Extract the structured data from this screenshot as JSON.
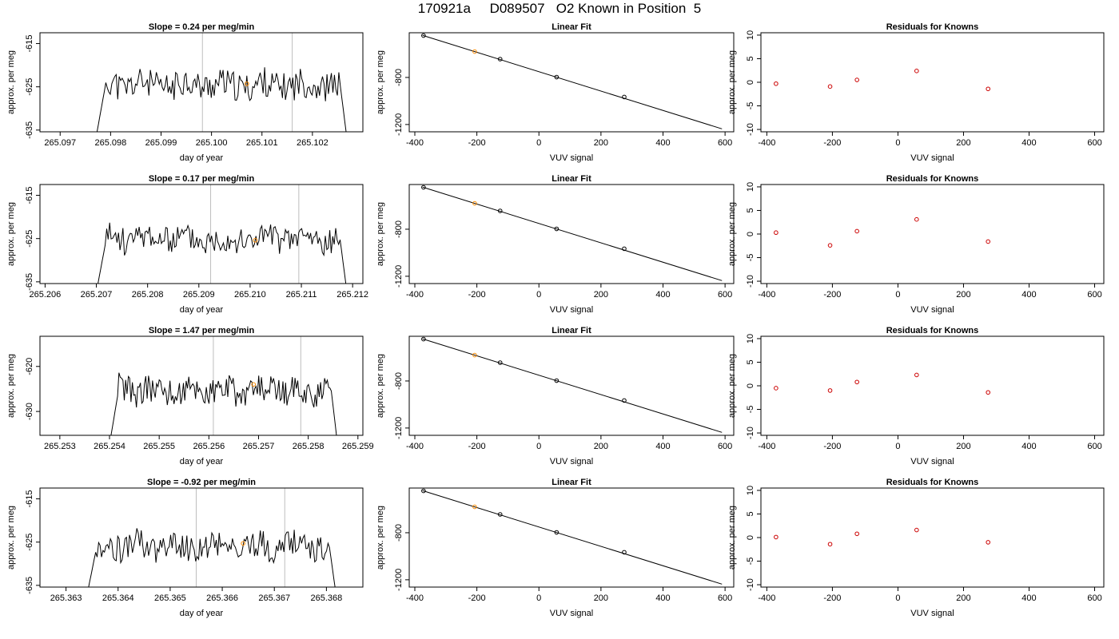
{
  "page_title": "170921a     D089507   O2 Known in Position  5",
  "colors": {
    "trace": "#000000",
    "marker": "#FF8C00",
    "residual": "#CC0000",
    "gridline": "#BEBEBE"
  },
  "chart_data": [
    {
      "type": "line",
      "title": "Slope =  0.24  per meg/min",
      "xlabel": "day of year",
      "ylabel": "approx. per meg",
      "xlim": [
        265.0966,
        265.103
      ],
      "ylim": [
        -635.4,
        -612.5
      ],
      "xticks": [
        {
          "v": 265.097,
          "label": "265.097"
        },
        {
          "v": 265.098,
          "label": "265.098"
        },
        {
          "v": 265.099,
          "label": "265.099"
        },
        {
          "v": 265.1,
          "label": "265.100"
        },
        {
          "v": 265.101,
          "label": "265.101"
        },
        {
          "v": 265.102,
          "label": "265.102"
        }
      ],
      "yticks": [
        {
          "v": -615,
          "label": "-615"
        },
        {
          "v": -625,
          "label": "-625"
        },
        {
          "v": -635,
          "label": "-635"
        }
      ],
      "vlines": [
        265.09982,
        265.1016
      ],
      "x_range": [
        265.0977,
        265.1027
      ],
      "y_mean": -624.5,
      "amplitude": 3.4,
      "seed": 11,
      "highlight": {
        "x": 265.1007,
        "y": -624.3
      }
    },
    {
      "type": "scatter",
      "title": "Linear Fit",
      "xlabel": "VUV signal",
      "ylabel": "approx. per meg",
      "xlim": [
        -418,
        628
      ],
      "ylim": [
        -1262,
        -420
      ],
      "xticks": [
        {
          "v": -400,
          "label": "-400"
        },
        {
          "v": -200,
          "label": "-200"
        },
        {
          "v": 0,
          "label": "0"
        },
        {
          "v": 200,
          "label": "200"
        },
        {
          "v": 400,
          "label": "400"
        },
        {
          "v": 600,
          "label": "600"
        }
      ],
      "yticks": [
        {
          "v": -800,
          "label": "-800"
        },
        {
          "v": -1200,
          "label": "-1200"
        }
      ],
      "x": [
        -372,
        -207,
        -125,
        57,
        275
      ],
      "y": [
        -444,
        -580,
        -644,
        -797,
        -966
      ],
      "highlight_index": 1,
      "fit_line": {
        "x": [
          -375,
          590
        ],
        "y": [
          -442,
          -1237
        ]
      }
    },
    {
      "type": "scatter",
      "title": "Residuals for Knowns",
      "xlabel": "VUV signal",
      "ylabel": "approx. per meg",
      "xlim": [
        -418,
        628
      ],
      "ylim": [
        -10.5,
        10.5
      ],
      "xticks": [
        {
          "v": -400,
          "label": "-400"
        },
        {
          "v": -200,
          "label": "-200"
        },
        {
          "v": 0,
          "label": "0"
        },
        {
          "v": 200,
          "label": "200"
        },
        {
          "v": 400,
          "label": "400"
        },
        {
          "v": 600,
          "label": "600"
        }
      ],
      "yticks": [
        {
          "v": 10,
          "label": "10"
        },
        {
          "v": 5,
          "label": "5"
        },
        {
          "v": 0,
          "label": "0"
        },
        {
          "v": -5,
          "label": "-5"
        },
        {
          "v": -10,
          "label": "-10"
        }
      ],
      "x": [
        -372,
        -207,
        -125,
        57,
        275
      ],
      "y": [
        -0.3,
        -0.9,
        0.5,
        2.4,
        -1.4
      ]
    },
    {
      "type": "line",
      "title": "Slope =  0.17  per meg/min",
      "xlabel": "day of year",
      "ylabel": "approx. per meg",
      "xlim": [
        265.2059,
        265.2122
      ],
      "ylim": [
        -635.4,
        -612.5
      ],
      "xticks": [
        {
          "v": 265.206,
          "label": "265.206"
        },
        {
          "v": 265.207,
          "label": "265.207"
        },
        {
          "v": 265.208,
          "label": "265.208"
        },
        {
          "v": 265.209,
          "label": "265.209"
        },
        {
          "v": 265.21,
          "label": "265.210"
        },
        {
          "v": 265.211,
          "label": "265.211"
        },
        {
          "v": 265.212,
          "label": "265.212"
        }
      ],
      "yticks": [
        {
          "v": -615,
          "label": "-615"
        },
        {
          "v": -625,
          "label": "-625"
        },
        {
          "v": -635,
          "label": "-635"
        }
      ],
      "vlines": [
        265.20923,
        265.21095
      ],
      "x_range": [
        265.207,
        265.2119
      ],
      "y_mean": -625.0,
      "amplitude": 3.2,
      "seed": 23,
      "highlight": {
        "x": 265.2101,
        "y": -625.4
      }
    },
    {
      "type": "scatter",
      "title": "Linear Fit",
      "xlabel": "VUV signal",
      "ylabel": "approx. per meg",
      "xlim": [
        -418,
        628
      ],
      "ylim": [
        -1262,
        -420
      ],
      "xticks": [
        {
          "v": -400,
          "label": "-400"
        },
        {
          "v": -200,
          "label": "-200"
        },
        {
          "v": 0,
          "label": "0"
        },
        {
          "v": 200,
          "label": "200"
        },
        {
          "v": 400,
          "label": "400"
        },
        {
          "v": 600,
          "label": "600"
        }
      ],
      "yticks": [
        {
          "v": -800,
          "label": "-800"
        },
        {
          "v": -1200,
          "label": "-1200"
        }
      ],
      "x": [
        -372,
        -207,
        -125,
        57,
        275
      ],
      "y": [
        -444,
        -580,
        -644,
        -797,
        -966
      ],
      "highlight_index": 1,
      "fit_line": {
        "x": [
          -375,
          590
        ],
        "y": [
          -442,
          -1237
        ]
      }
    },
    {
      "type": "scatter",
      "title": "Residuals for Knowns",
      "xlabel": "VUV signal",
      "ylabel": "approx. per meg",
      "xlim": [
        -418,
        628
      ],
      "ylim": [
        -10.5,
        10.5
      ],
      "xticks": [
        {
          "v": -400,
          "label": "-400"
        },
        {
          "v": -200,
          "label": "-200"
        },
        {
          "v": 0,
          "label": "0"
        },
        {
          "v": 200,
          "label": "200"
        },
        {
          "v": 400,
          "label": "400"
        },
        {
          "v": 600,
          "label": "600"
        }
      ],
      "yticks": [
        {
          "v": 10,
          "label": "10"
        },
        {
          "v": 5,
          "label": "5"
        },
        {
          "v": 0,
          "label": "0"
        },
        {
          "v": -5,
          "label": "-5"
        },
        {
          "v": -10,
          "label": "-10"
        }
      ],
      "x": [
        -372,
        -207,
        -125,
        57,
        275
      ],
      "y": [
        0.3,
        -2.4,
        0.6,
        3.1,
        -1.6
      ]
    },
    {
      "type": "line",
      "title": "Slope =  1.47  per meg/min",
      "xlabel": "day of year",
      "ylabel": "approx. per meg",
      "xlim": [
        265.2526,
        265.2591
      ],
      "ylim": [
        -635.3,
        -613.3
      ],
      "xticks": [
        {
          "v": 265.253,
          "label": "265.253"
        },
        {
          "v": 265.254,
          "label": "265.254"
        },
        {
          "v": 265.255,
          "label": "265.255"
        },
        {
          "v": 265.256,
          "label": "265.256"
        },
        {
          "v": 265.257,
          "label": "265.257"
        },
        {
          "v": 265.258,
          "label": "265.258"
        },
        {
          "v": 265.259,
          "label": "265.259"
        }
      ],
      "yticks": [
        {
          "v": -620,
          "label": "-620"
        },
        {
          "v": -630,
          "label": "-630"
        }
      ],
      "vlines": [
        265.25609,
        265.25785
      ],
      "x_range": [
        265.254,
        265.2586
      ],
      "y_mean": -625.2,
      "amplitude": 3.2,
      "seed": 37,
      "highlight": {
        "x": 265.2569,
        "y": -624.0
      }
    },
    {
      "type": "scatter",
      "title": "Linear Fit",
      "xlabel": "VUV signal",
      "ylabel": "approx. per meg",
      "xlim": [
        -418,
        628
      ],
      "ylim": [
        -1262,
        -420
      ],
      "xticks": [
        {
          "v": -400,
          "label": "-400"
        },
        {
          "v": -200,
          "label": "-200"
        },
        {
          "v": 0,
          "label": "0"
        },
        {
          "v": 200,
          "label": "200"
        },
        {
          "v": 400,
          "label": "400"
        },
        {
          "v": 600,
          "label": "600"
        }
      ],
      "yticks": [
        {
          "v": -800,
          "label": "-800"
        },
        {
          "v": -1200,
          "label": "-1200"
        }
      ],
      "x": [
        -372,
        -207,
        -125,
        57,
        275
      ],
      "y": [
        -444,
        -580,
        -644,
        -797,
        -966
      ],
      "highlight_index": 1,
      "fit_line": {
        "x": [
          -375,
          590
        ],
        "y": [
          -442,
          -1237
        ]
      }
    },
    {
      "type": "scatter",
      "title": "Residuals for Knowns",
      "xlabel": "VUV signal",
      "ylabel": "approx. per meg",
      "xlim": [
        -418,
        628
      ],
      "ylim": [
        -10.5,
        10.5
      ],
      "xticks": [
        {
          "v": -400,
          "label": "-400"
        },
        {
          "v": -200,
          "label": "-200"
        },
        {
          "v": 0,
          "label": "0"
        },
        {
          "v": 200,
          "label": "200"
        },
        {
          "v": 400,
          "label": "400"
        },
        {
          "v": 600,
          "label": "600"
        }
      ],
      "yticks": [
        {
          "v": 10,
          "label": "10"
        },
        {
          "v": 5,
          "label": "5"
        },
        {
          "v": 0,
          "label": "0"
        },
        {
          "v": -5,
          "label": "-5"
        },
        {
          "v": -10,
          "label": "-10"
        }
      ],
      "x": [
        -372,
        -207,
        -125,
        57,
        275
      ],
      "y": [
        -0.5,
        -1.0,
        0.8,
        2.3,
        -1.4
      ]
    },
    {
      "type": "line",
      "title": "Slope =  -0.92  per meg/min",
      "xlabel": "day of year",
      "ylabel": "approx. per meg",
      "xlim": [
        265.3625,
        265.3687
      ],
      "ylim": [
        -635.4,
        -612.5
      ],
      "xticks": [
        {
          "v": 265.363,
          "label": "265.363"
        },
        {
          "v": 265.364,
          "label": "265.364"
        },
        {
          "v": 265.365,
          "label": "265.365"
        },
        {
          "v": 265.366,
          "label": "265.366"
        },
        {
          "v": 265.367,
          "label": "265.367"
        },
        {
          "v": 265.368,
          "label": "265.368"
        }
      ],
      "yticks": [
        {
          "v": -615,
          "label": "-615"
        },
        {
          "v": -625,
          "label": "-625"
        },
        {
          "v": -635,
          "label": "-635"
        }
      ],
      "vlines": [
        265.3655,
        265.3672
      ],
      "x_range": [
        265.3634,
        265.3682
      ],
      "y_mean": -626.0,
      "amplitude": 3.2,
      "seed": 53,
      "highlight": {
        "x": 265.3664,
        "y": -625.3
      }
    },
    {
      "type": "scatter",
      "title": "Linear Fit",
      "xlabel": "VUV signal",
      "ylabel": "approx. per meg",
      "xlim": [
        -418,
        628
      ],
      "ylim": [
        -1262,
        -420
      ],
      "xticks": [
        {
          "v": -400,
          "label": "-400"
        },
        {
          "v": -200,
          "label": "-200"
        },
        {
          "v": 0,
          "label": "0"
        },
        {
          "v": 200,
          "label": "200"
        },
        {
          "v": 400,
          "label": "400"
        },
        {
          "v": 600,
          "label": "600"
        }
      ],
      "yticks": [
        {
          "v": -800,
          "label": "-800"
        },
        {
          "v": -1200,
          "label": "-1200"
        }
      ],
      "x": [
        -372,
        -207,
        -125,
        57,
        275
      ],
      "y": [
        -444,
        -580,
        -644,
        -797,
        -966
      ],
      "highlight_index": 1,
      "fit_line": {
        "x": [
          -375,
          590
        ],
        "y": [
          -442,
          -1237
        ]
      }
    },
    {
      "type": "scatter",
      "title": "Residuals for Knowns",
      "xlabel": "VUV signal",
      "ylabel": "approx. per meg",
      "xlim": [
        -418,
        628
      ],
      "ylim": [
        -10.5,
        10.5
      ],
      "xticks": [
        {
          "v": -400,
          "label": "-400"
        },
        {
          "v": -200,
          "label": "-200"
        },
        {
          "v": 0,
          "label": "0"
        },
        {
          "v": 200,
          "label": "200"
        },
        {
          "v": 400,
          "label": "400"
        },
        {
          "v": 600,
          "label": "600"
        }
      ],
      "yticks": [
        {
          "v": 10,
          "label": "10"
        },
        {
          "v": 5,
          "label": "5"
        },
        {
          "v": 0,
          "label": "0"
        },
        {
          "v": -5,
          "label": "-5"
        },
        {
          "v": -10,
          "label": "-10"
        }
      ],
      "x": [
        -372,
        -207,
        -125,
        57,
        275
      ],
      "y": [
        0.1,
        -1.4,
        0.8,
        1.6,
        -1.0
      ]
    }
  ]
}
